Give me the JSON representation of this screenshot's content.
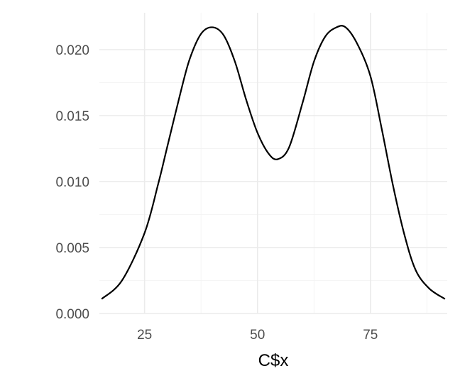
{
  "chart_data": {
    "type": "line",
    "title": "",
    "xlabel": "C$x",
    "ylabel": "",
    "xlim": [
      15,
      92
    ],
    "ylim": [
      0,
      0.0228
    ],
    "x_ticks": [
      25,
      50,
      75
    ],
    "x_tick_labels": [
      "25",
      "50",
      "75"
    ],
    "x_minor": [
      12.5,
      37.5,
      62.5,
      87.5
    ],
    "y_ticks": [
      0,
      0.005,
      0.01,
      0.015,
      0.02
    ],
    "y_tick_labels": [
      "0.000",
      "0.005",
      "0.010",
      "0.015",
      "0.020"
    ],
    "y_minor": [
      0.0025,
      0.0075,
      0.0125,
      0.0175
    ],
    "grid": true,
    "series": [
      {
        "x": [
          15.5,
          20,
          25,
          28,
          30,
          33,
          35,
          37.5,
          40,
          42.5,
          45,
          47.5,
          50,
          52.5,
          54.5,
          57,
          60,
          62.5,
          65,
          67.5,
          69.5,
          72,
          75,
          77.5,
          80,
          82.5,
          85,
          88,
          91.5
        ],
        "y": [
          0.0011,
          0.0025,
          0.0061,
          0.0098,
          0.0126,
          0.0168,
          0.0193,
          0.0212,
          0.0217,
          0.0211,
          0.0191,
          0.0162,
          0.0137,
          0.0121,
          0.0117,
          0.0126,
          0.016,
          0.0191,
          0.021,
          0.0217,
          0.0217,
          0.0205,
          0.018,
          0.014,
          0.0097,
          0.006,
          0.0033,
          0.0019,
          0.0011
        ]
      }
    ]
  }
}
